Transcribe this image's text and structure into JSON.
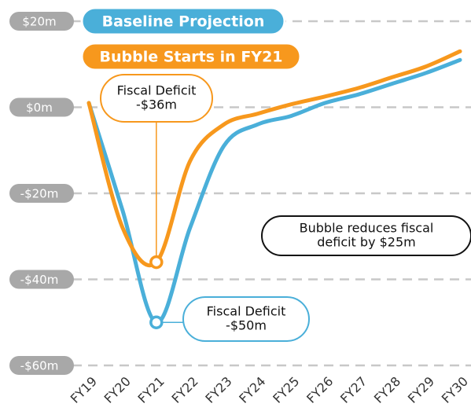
{
  "chart_data": {
    "type": "line",
    "categories": [
      "FY19",
      "FY20",
      "FY21",
      "FY22",
      "FY23",
      "FY24",
      "FY25",
      "FY26",
      "FY27",
      "FY28",
      "FY29",
      "FY30"
    ],
    "series": [
      {
        "name": "Baseline Projection",
        "color": "#4aafd9",
        "values": [
          1,
          -24,
          -50,
          -28,
          -9,
          -4,
          -2,
          1,
          3,
          5.5,
          8,
          11
        ]
      },
      {
        "name": "Bubble Starts in FY21",
        "color": "#f7981d",
        "values": [
          1,
          -28,
          -36,
          -12.5,
          -4,
          -1.5,
          0.7,
          2.5,
          4.5,
          7,
          9.5,
          13
        ]
      }
    ],
    "ylim": [
      -60,
      20
    ],
    "yticks": [
      {
        "value": 20,
        "label": "$20m"
      },
      {
        "value": 0,
        "label": "$0m"
      },
      {
        "value": -20,
        "label": "-$20m"
      },
      {
        "value": -40,
        "label": "-$40m"
      },
      {
        "value": -60,
        "label": "-$60m"
      }
    ],
    "grid": true,
    "annotations": [
      {
        "lines": [
          "Fiscal Deficit",
          "-$36m"
        ],
        "series": 1,
        "point": 2
      },
      {
        "lines": [
          "Fiscal Deficit",
          "-$50m"
        ],
        "series": 0,
        "point": 2
      },
      {
        "lines": [
          "Bubble reduces fiscal",
          "deficit by $25m"
        ]
      }
    ]
  }
}
